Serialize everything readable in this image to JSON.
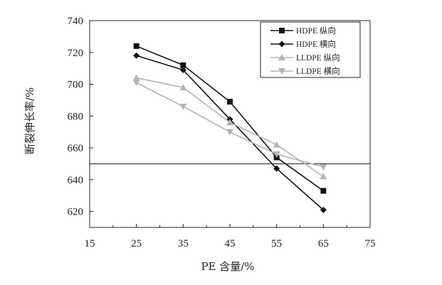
{
  "chart_data": {
    "type": "line",
    "title": "",
    "xlabel": "PE 含量/%",
    "ylabel": "断裂伸长率/%",
    "xlim": [
      15,
      75
    ],
    "ylim": [
      610,
      740
    ],
    "x_ticks": [
      15,
      25,
      35,
      45,
      55,
      65,
      75
    ],
    "y_ticks": [
      620,
      640,
      660,
      680,
      700,
      720,
      740
    ],
    "x_tick_labels": [
      "15",
      "25",
      "35",
      "45",
      "55",
      "65",
      "75"
    ],
    "y_tick_labels": [
      "620",
      "640",
      "660",
      "680",
      "700",
      "720",
      "740"
    ],
    "x": [
      25,
      35,
      45,
      55,
      65
    ],
    "reference_line": 650,
    "grid": false,
    "legend_position": "top-right",
    "series": [
      {
        "name": "HDPE 纵向",
        "values": [
          724,
          712,
          689,
          654,
          633
        ],
        "color": "#111111",
        "marker": "square"
      },
      {
        "name": "HDPE 横向",
        "values": [
          718,
          709,
          678,
          647,
          621
        ],
        "color": "#111111",
        "marker": "diamond"
      },
      {
        "name": "LLDPE 纵向",
        "values": [
          704,
          698,
          676,
          662,
          642
        ],
        "color": "#b4b4b4",
        "marker": "triangle-up"
      },
      {
        "name": "LLDPE 横向",
        "values": [
          701,
          686,
          670,
          656,
          648
        ],
        "color": "#b4b4b4",
        "marker": "triangle-down"
      }
    ]
  }
}
